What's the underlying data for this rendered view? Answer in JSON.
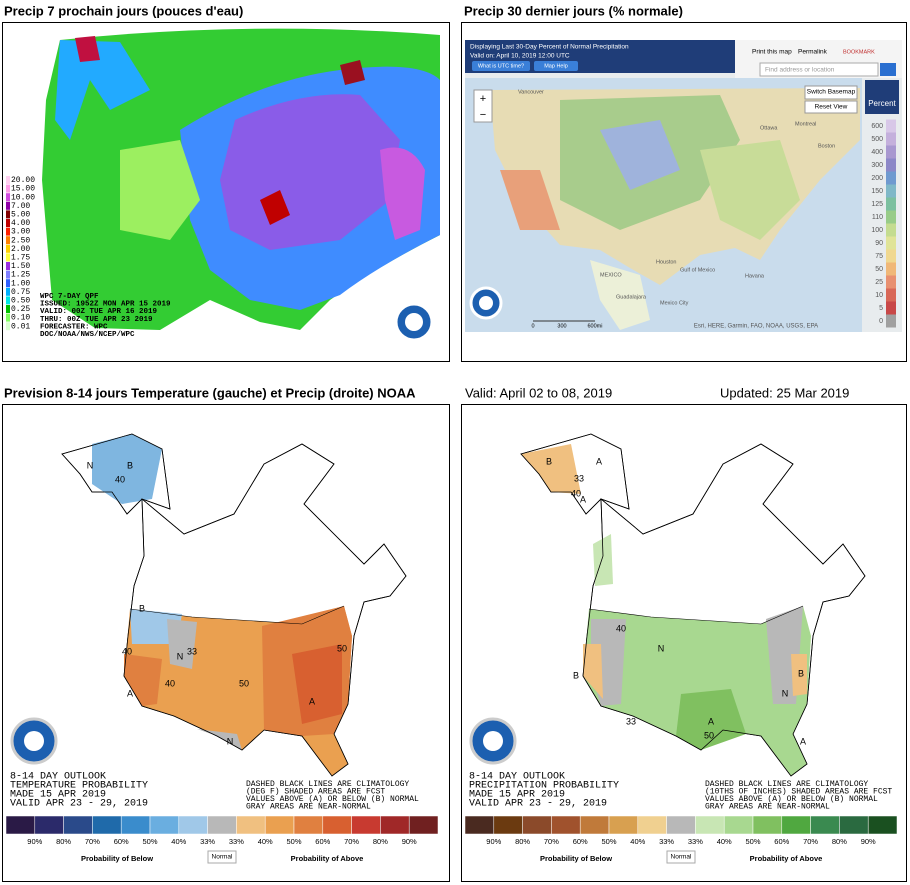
{
  "panel_titles": {
    "tl": "Precip 7 prochain jours (pouces d'eau)",
    "tr": "Precip 30 dernier jours (% normale)",
    "bl": "Prevision 8-14 jours Temperature (gauche) et Precip (droite) NOAA",
    "br_valid": "Valid: April 02 to 08, 2019",
    "br_updated": "Updated: 25 Mar 2019"
  },
  "precip_7day": {
    "legend": [
      {
        "label": "20.00",
        "color": "#ffd0f0"
      },
      {
        "label": "15.00",
        "color": "#ff9ee8"
      },
      {
        "label": "10.00",
        "color": "#d24ce0"
      },
      {
        "label": "7.00",
        "color": "#8f00a8"
      },
      {
        "label": "5.00",
        "color": "#800000"
      },
      {
        "label": "4.00",
        "color": "#c00000"
      },
      {
        "label": "3.00",
        "color": "#ff2000"
      },
      {
        "label": "2.50",
        "color": "#ff8000"
      },
      {
        "label": "2.00",
        "color": "#ffd000"
      },
      {
        "label": "1.75",
        "color": "#ffff40"
      },
      {
        "label": "1.50",
        "color": "#9a30e0"
      },
      {
        "label": "1.25",
        "color": "#7f7fff"
      },
      {
        "label": "1.00",
        "color": "#3060ff"
      },
      {
        "label": "0.75",
        "color": "#00b0ff"
      },
      {
        "label": "0.50",
        "color": "#00e8e8"
      },
      {
        "label": "0.25",
        "color": "#00c000"
      },
      {
        "label": "0.10",
        "color": "#80ff60"
      },
      {
        "label": "0.01",
        "color": "#d8ffd0"
      }
    ],
    "info": [
      "WPC 7-DAY QPF",
      "ISSUED: 1952Z MON APR 15 2019",
      "VALID: 00Z TUE APR 16 2019",
      "THRU: 00Z TUE APR 23 2019",
      "FORECASTER: WPC",
      "DOC/NOAA/NWS/NCEP/WPC"
    ]
  },
  "precip_30day": {
    "header": "Displaying Last 30-Day Percent of Normal Precipitation",
    "valid": "Valid on: April 10, 2019 12:00 UTC",
    "utc_button": "What is UTC time?",
    "help_button": "Map Help",
    "print": "Print this map",
    "permalink": "Permalink",
    "bookmark": "BOOKMARK",
    "search": "Find address or location",
    "switch_basemap": "Switch Basemap",
    "reset_view": "Reset View",
    "legend_title": "Percent",
    "legend": [
      {
        "label": "600",
        "color": "#d8c8e8"
      },
      {
        "label": "500",
        "color": "#c4b0dc"
      },
      {
        "label": "400",
        "color": "#a898d0"
      },
      {
        "label": "300",
        "color": "#8c88c8"
      },
      {
        "label": "200",
        "color": "#6f9ad0"
      },
      {
        "label": "150",
        "color": "#7fb8c8"
      },
      {
        "label": "125",
        "color": "#7cc0a0"
      },
      {
        "label": "110",
        "color": "#98cc88"
      },
      {
        "label": "100",
        "color": "#c4dc90"
      },
      {
        "label": "90",
        "color": "#e0e498"
      },
      {
        "label": "75",
        "color": "#f0d890"
      },
      {
        "label": "50",
        "color": "#f0b878"
      },
      {
        "label": "25",
        "color": "#e89070"
      },
      {
        "label": "10",
        "color": "#d86858"
      },
      {
        "label": "5",
        "color": "#c84848"
      },
      {
        "label": "0",
        "color": "#a0a0a0"
      }
    ],
    "attribution": "Esri, HERE, Garmin, FAO, NOAA, USGS, EPA",
    "scale": [
      "0",
      "300",
      "600mi"
    ],
    "places": [
      "Vancouver",
      "Ottawa",
      "Montreal",
      "Boston",
      "Houston",
      "MEXICO",
      "Havana",
      "Guadalajara",
      "Mexico City",
      "Gulf of Mexico"
    ]
  },
  "temperature_outlook": {
    "caption": [
      "8-14 DAY OUTLOOK",
      "TEMPERATURE PROBABILITY",
      "MADE  15 APR 2019",
      "VALID  APR 23 - 29, 2019"
    ],
    "notes": [
      "DASHED BLACK LINES ARE CLIMATOLOGY",
      "(DEG F) SHADED AREAS ARE FCST",
      "VALUES ABOVE (A) OR BELOW (B) NORMAL",
      "GRAY AREAS ARE NEAR-NORMAL"
    ],
    "legend": {
      "labels": [
        "90%",
        "80%",
        "70%",
        "60%",
        "50%",
        "40%",
        "33%",
        "33%",
        "40%",
        "50%",
        "60%",
        "70%",
        "80%",
        "90%"
      ],
      "colors": [
        "#2a1a46",
        "#2b2a6a",
        "#2a4a8a",
        "#1f6aaa",
        "#3a8ccc",
        "#6aaee0",
        "#a0c8e8",
        "#b8b8b8",
        "#f0c080",
        "#eaa050",
        "#e08040",
        "#d86030",
        "#c83a30",
        "#a02828",
        "#702020"
      ],
      "normal": "Normal",
      "below": "Probability of Below",
      "above": "Probability of Above"
    },
    "map_labels": [
      "N",
      "B",
      "40",
      "B",
      "N",
      "33",
      "40",
      "A",
      "40",
      "50",
      "50",
      "A",
      "N"
    ]
  },
  "precipitation_outlook": {
    "caption": [
      "8-14 DAY OUTLOOK",
      "PRECIPITATION PROBABILITY",
      "MADE  15 APR 2019",
      "VALID  APR 23 - 29, 2019"
    ],
    "notes": [
      "DASHED BLACK LINES ARE CLIMATOLOGY",
      "(10THS OF INCHES) SHADED AREAS ARE FCST",
      "VALUES ABOVE (A) OR BELOW (B) NORMAL",
      "GRAY AREAS ARE NEAR-NORMAL"
    ],
    "legend": {
      "labels": [
        "90%",
        "80%",
        "70%",
        "60%",
        "50%",
        "40%",
        "33%",
        "33%",
        "40%",
        "50%",
        "60%",
        "70%",
        "80%",
        "90%"
      ],
      "colors": [
        "#4a2a20",
        "#6b3a10",
        "#8b4a2a",
        "#a0522d",
        "#c07a3a",
        "#d8a050",
        "#f0d090",
        "#b8b8b8",
        "#c8e6b4",
        "#a8d890",
        "#80c060",
        "#50a840",
        "#3a8a50",
        "#2a6a40",
        "#1a5020"
      ],
      "normal": "Normal",
      "below": "Probability of Below",
      "above": "Probability of Above"
    },
    "map_labels": [
      "B",
      "A",
      "33",
      "40",
      "A",
      "40",
      "N",
      "B",
      "A",
      "50",
      "N",
      "B",
      "33",
      "A"
    ]
  }
}
